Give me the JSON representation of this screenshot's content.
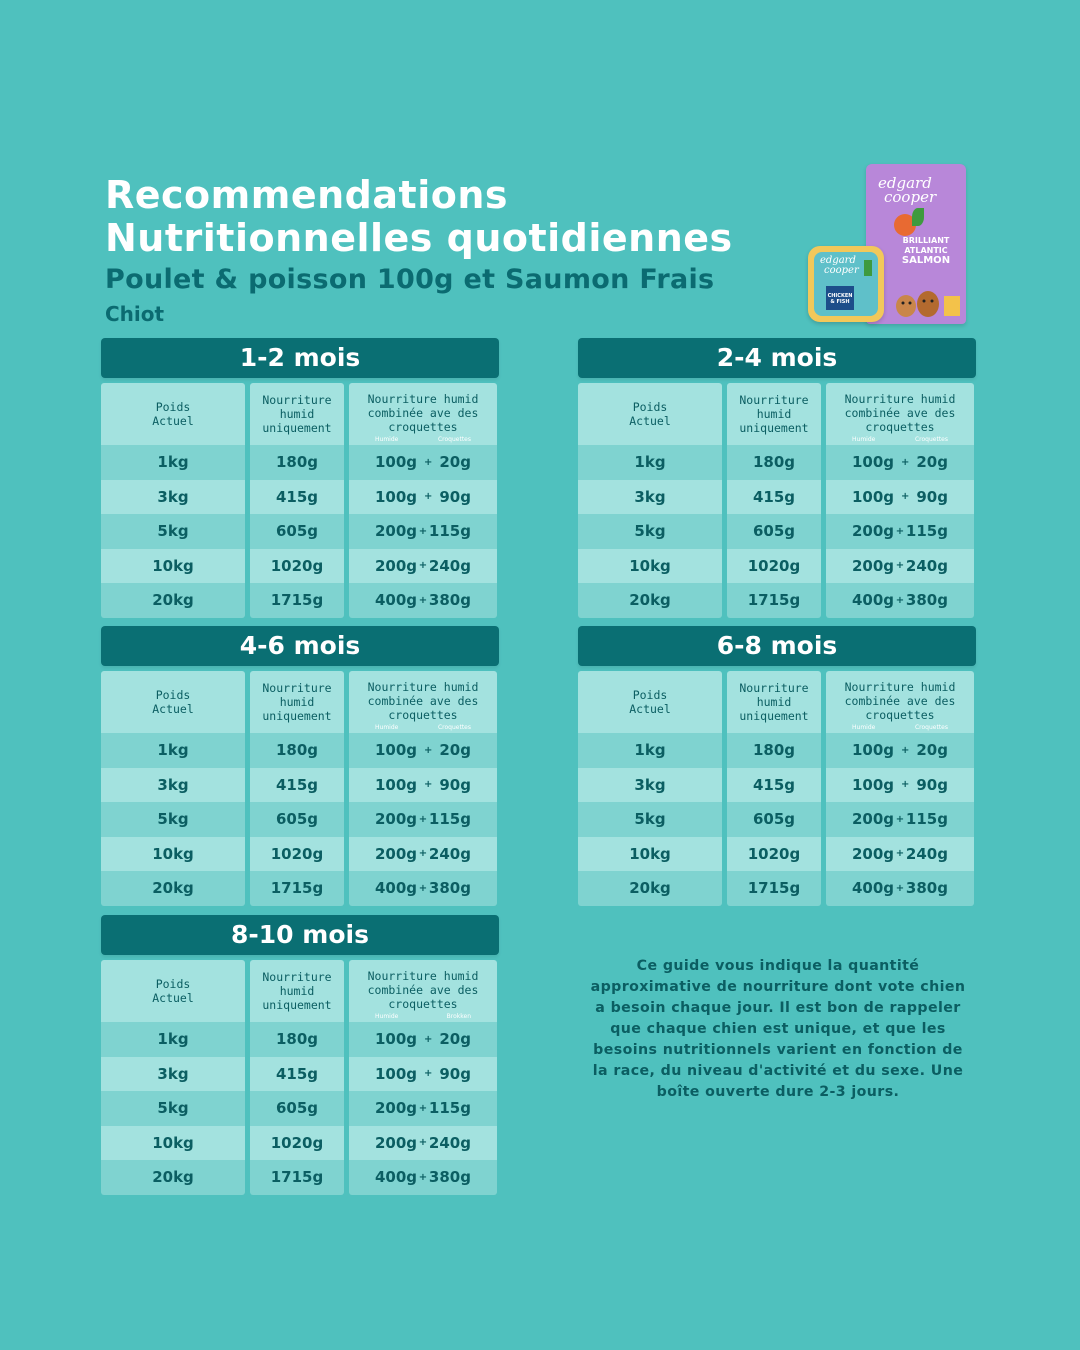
{
  "header": {
    "title_line1": "Recommendations",
    "title_line2": "Nutritionnelles quotidiennes",
    "subtitle": "Poulet & poisson 100g et Saumon Frais",
    "stage": "Chiot"
  },
  "product": {
    "bag_brand_line1": "edgard",
    "bag_brand_line2": "cooper",
    "bag_text": [
      "BRILLIANT",
      "ATLANTIC",
      "SALMON"
    ],
    "tray_brand_line1": "edgard",
    "tray_brand_line2": "cooper",
    "tray_label": "CHICKEN & FISH"
  },
  "columns": {
    "weight": [
      "Poids",
      "Actuel"
    ],
    "wet_only": [
      "Nourriture",
      "humid",
      "uniquement"
    ],
    "combined": [
      "Nourriture humid",
      "combinée ave des",
      "croquettes"
    ]
  },
  "tables": [
    {
      "title": "1-2 mois",
      "sub_left": "Humide",
      "sub_right": "Croquettes",
      "rows": [
        {
          "weight": "1kg",
          "wet": "180g",
          "mix_wet": "100g",
          "mix_dry": "20g"
        },
        {
          "weight": "3kg",
          "wet": "415g",
          "mix_wet": "100g",
          "mix_dry": "90g"
        },
        {
          "weight": "5kg",
          "wet": "605g",
          "mix_wet": "200g",
          "mix_dry": "115g"
        },
        {
          "weight": "10kg",
          "wet": "1020g",
          "mix_wet": "200g",
          "mix_dry": "240g"
        },
        {
          "weight": "20kg",
          "wet": "1715g",
          "mix_wet": "400g",
          "mix_dry": "380g"
        }
      ]
    },
    {
      "title": "2-4 mois",
      "sub_left": "Humide",
      "sub_right": "Croquettes",
      "rows": [
        {
          "weight": "1kg",
          "wet": "180g",
          "mix_wet": "100g",
          "mix_dry": "20g"
        },
        {
          "weight": "3kg",
          "wet": "415g",
          "mix_wet": "100g",
          "mix_dry": "90g"
        },
        {
          "weight": "5kg",
          "wet": "605g",
          "mix_wet": "200g",
          "mix_dry": "115g"
        },
        {
          "weight": "10kg",
          "wet": "1020g",
          "mix_wet": "200g",
          "mix_dry": "240g"
        },
        {
          "weight": "20kg",
          "wet": "1715g",
          "mix_wet": "400g",
          "mix_dry": "380g"
        }
      ]
    },
    {
      "title": "4-6 mois",
      "sub_left": "Humide",
      "sub_right": "Croquettes",
      "rows": [
        {
          "weight": "1kg",
          "wet": "180g",
          "mix_wet": "100g",
          "mix_dry": "20g"
        },
        {
          "weight": "3kg",
          "wet": "415g",
          "mix_wet": "100g",
          "mix_dry": "90g"
        },
        {
          "weight": "5kg",
          "wet": "605g",
          "mix_wet": "200g",
          "mix_dry": "115g"
        },
        {
          "weight": "10kg",
          "wet": "1020g",
          "mix_wet": "200g",
          "mix_dry": "240g"
        },
        {
          "weight": "20kg",
          "wet": "1715g",
          "mix_wet": "400g",
          "mix_dry": "380g"
        }
      ]
    },
    {
      "title": "6-8 mois",
      "sub_left": "Humide",
      "sub_right": "Croquettes",
      "rows": [
        {
          "weight": "1kg",
          "wet": "180g",
          "mix_wet": "100g",
          "mix_dry": "20g"
        },
        {
          "weight": "3kg",
          "wet": "415g",
          "mix_wet": "100g",
          "mix_dry": "90g"
        },
        {
          "weight": "5kg",
          "wet": "605g",
          "mix_wet": "200g",
          "mix_dry": "115g"
        },
        {
          "weight": "10kg",
          "wet": "1020g",
          "mix_wet": "200g",
          "mix_dry": "240g"
        },
        {
          "weight": "20kg",
          "wet": "1715g",
          "mix_wet": "400g",
          "mix_dry": "380g"
        }
      ]
    },
    {
      "title": "8-10 mois",
      "sub_left": "Humide",
      "sub_right": "Brokken",
      "rows": [
        {
          "weight": "1kg",
          "wet": "180g",
          "mix_wet": "100g",
          "mix_dry": "20g"
        },
        {
          "weight": "3kg",
          "wet": "415g",
          "mix_wet": "100g",
          "mix_dry": "90g"
        },
        {
          "weight": "5kg",
          "wet": "605g",
          "mix_wet": "200g",
          "mix_dry": "115g"
        },
        {
          "weight": "10kg",
          "wet": "1020g",
          "mix_wet": "200g",
          "mix_dry": "240g"
        },
        {
          "weight": "20kg",
          "wet": "1715g",
          "mix_wet": "400g",
          "mix_dry": "380g"
        }
      ]
    }
  ],
  "plus_sign": "+",
  "note": "Ce guide vous indique la quantité approximative de nourriture dont vote chien a besoin chaque jour. Il est bon de rappeler que chaque chien est unique, et que les besoins nutritionnels varient en fonction de la race, du niveau d'activité et du sexe. Une boîte ouverte dure 2-3 jours.",
  "colors": {
    "background": "#4fc1be",
    "header_bar": "#0a6f73",
    "row_light": "#a3e2df",
    "row_dark": "#7fd3d0",
    "text_dark": "#0b5e62"
  }
}
